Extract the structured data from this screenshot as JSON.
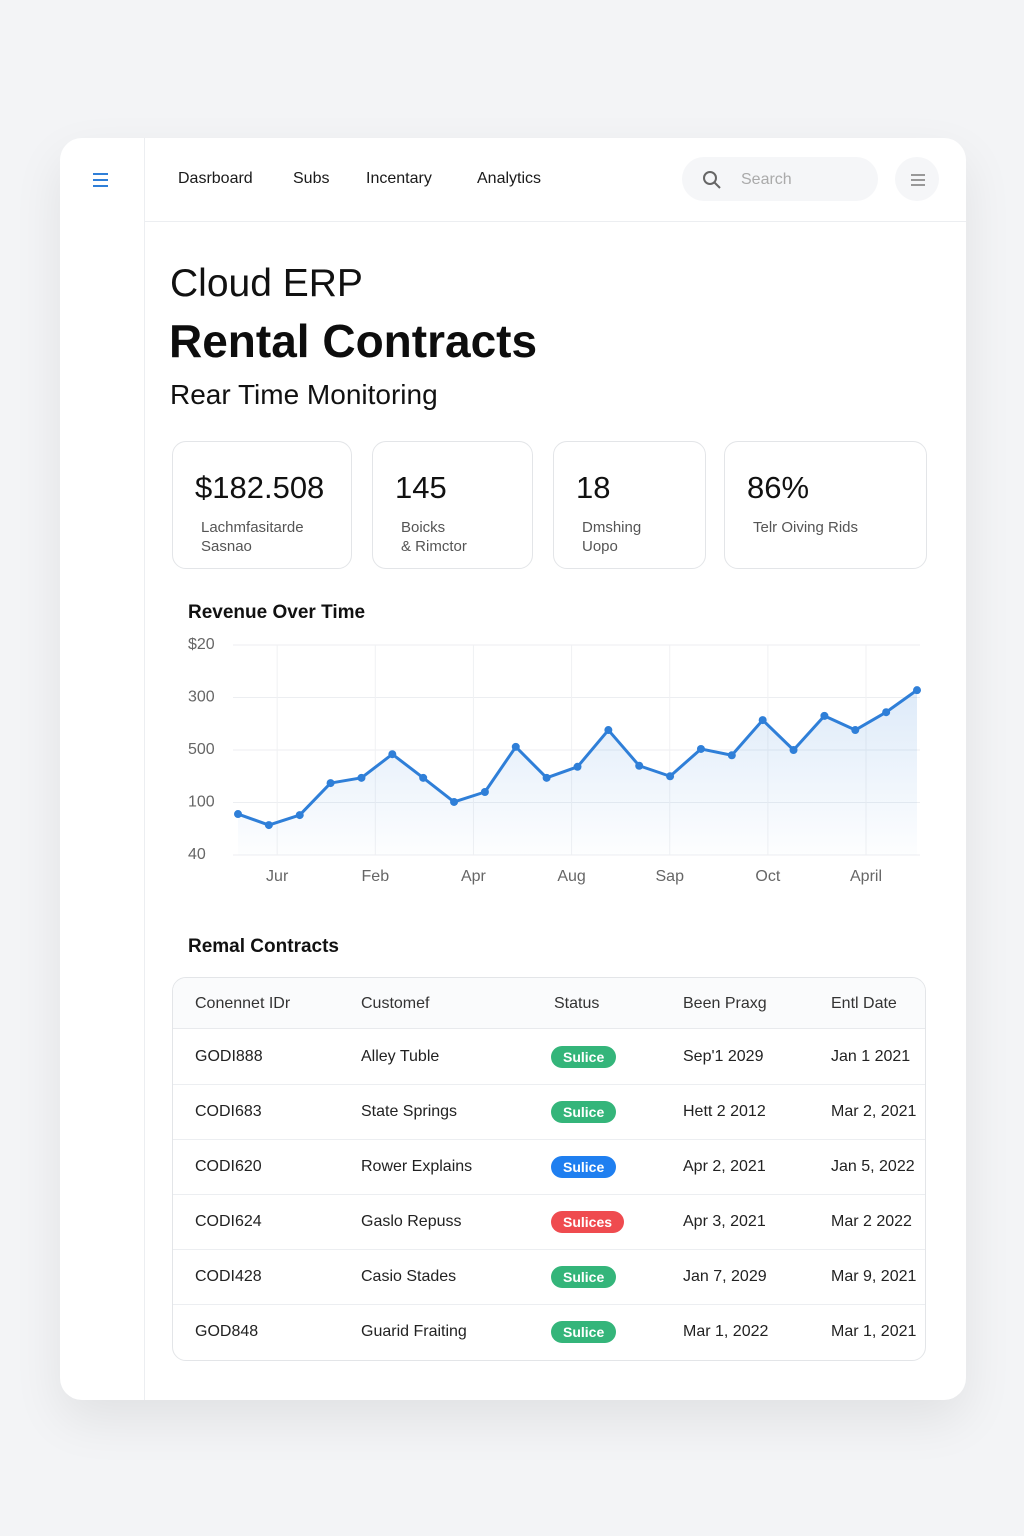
{
  "nav": {
    "items": [
      "Dasrboard",
      "Subs",
      "Incentary",
      "Analytics"
    ],
    "search_placeholder": "Search"
  },
  "header": {
    "kicker": "Cloud ERP",
    "title": "Rental Contracts",
    "subtitle": "Rear Time Monitoring"
  },
  "kpis": [
    {
      "value": "$182.508",
      "label": [
        "Lachmfasitarde",
        "Sasnao"
      ]
    },
    {
      "value": "145",
      "label": [
        "Boicks",
        "& Rimctor"
      ]
    },
    {
      "value": "18",
      "label": [
        "Dmshing",
        "Uopo"
      ]
    },
    {
      "value": "86%",
      "label": [
        "Telr Oiving Rids"
      ]
    }
  ],
  "chart_data": {
    "type": "line",
    "title": "Revenue Over Time",
    "x_labels": [
      "Jur",
      "Feb",
      "Apr",
      "Aug",
      "Sap",
      "Oct",
      "April"
    ],
    "series": [
      {
        "name": "Revenue",
        "color": "#2f7fd8",
        "values": [
          0.78,
          0.57,
          0.76,
          1.37,
          1.47,
          1.92,
          1.47,
          1.01,
          1.2,
          2.06,
          1.47,
          1.68,
          2.38,
          1.7,
          1.5,
          2.02,
          1.9,
          2.57,
          2.0,
          2.65,
          2.38,
          2.72,
          3.14
        ]
      }
    ],
    "ylim": [
      0,
      4
    ],
    "yticks": [
      {
        "value": 0,
        "label": "40"
      },
      {
        "value": 1,
        "label": "100"
      },
      {
        "value": 2,
        "label": "500"
      },
      {
        "value": 3,
        "label": "300"
      },
      {
        "value": 4,
        "label": "$20"
      }
    ],
    "grid": true,
    "area": true
  },
  "table": {
    "title": "Remal Contracts",
    "columns": [
      "Conennet IDr",
      "Customef",
      "Status",
      "Been Praxg",
      "Entl Date"
    ],
    "rows": [
      [
        "GODI888",
        "Alley Tuble",
        "Sulice",
        "Sep'1 2029",
        "Jan 1 2021"
      ],
      [
        "CODI683",
        "State Springs",
        "Sulice",
        "Hett 2 2012",
        "Mar 2, 2021"
      ],
      [
        "CODI620",
        "Rower Explains",
        "Sulice",
        "Apr 2, 2021",
        "Jan 5, 2022"
      ],
      [
        "CODI624",
        "Gaslo Repuss",
        "Sulices",
        "Apr 3, 2021",
        "Mar 2 2022"
      ],
      [
        "CODI428",
        "Casio Stades",
        "Sulice",
        "Jan 7, 2029",
        "Mar 9, 2021"
      ],
      [
        "GOD848",
        "Guarid Fraiting",
        "Sulice",
        "Mar 1, 2022",
        "Mar 1, 2021"
      ]
    ],
    "status_colors": [
      "#34b57a",
      "#34b57a",
      "#1f7ff0",
      "#ef4b4f",
      "#34b57a",
      "#34b57a"
    ]
  }
}
